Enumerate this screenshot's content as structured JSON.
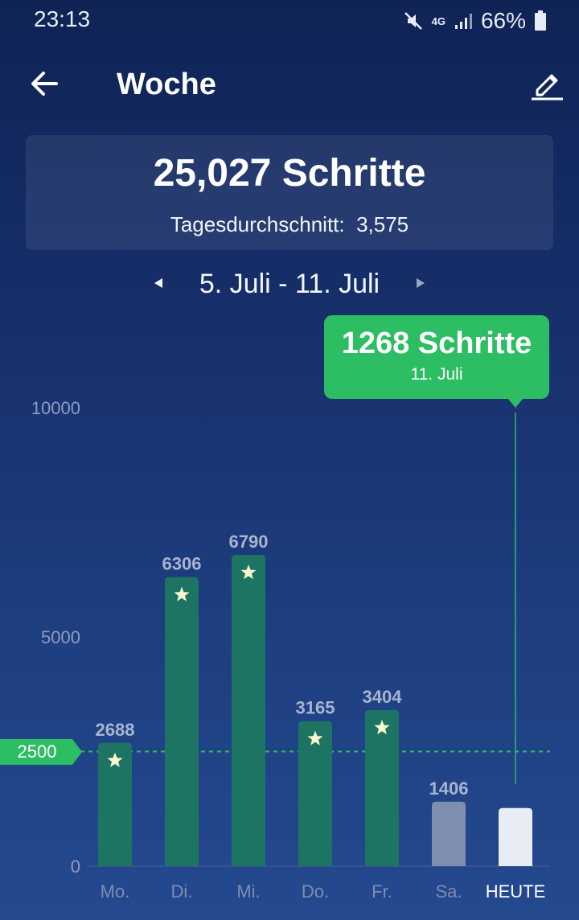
{
  "status_bar": {
    "time": "23:13",
    "network": "4G",
    "battery": "66%"
  },
  "header": {
    "title": "Woche"
  },
  "summary": {
    "total": "25,027 Schritte",
    "average_label": "Tagesdurchschnitt:",
    "average_value": "3,575"
  },
  "date_range": {
    "label": "5. Juli - 11. Juli"
  },
  "tooltip": {
    "steps": "1268 Schritte",
    "date": "11. Juli"
  },
  "goal": {
    "label": "2500",
    "value": 2500
  },
  "colors": {
    "bar_goal_met": "#1e7463",
    "bar_below_goal": "#7f8eae",
    "bar_today": "#e9ecf4",
    "goal_line": "#2dbd62",
    "star": "#fbf6cf"
  },
  "chart_data": {
    "type": "bar",
    "categories": [
      "Mo.",
      "Di.",
      "Mi.",
      "Do.",
      "Fr.",
      "Sa.",
      "HEUTE"
    ],
    "values": [
      2688,
      6306,
      6790,
      3165,
      3404,
      1406,
      1268
    ],
    "value_labels": [
      "2688",
      "6306",
      "6790",
      "3165",
      "3404",
      "1406",
      ""
    ],
    "highlighted_index": 6,
    "y_ticks": [
      {
        "value": 0,
        "label": "0"
      },
      {
        "value": 5000,
        "label": "5000"
      },
      {
        "value": 10000,
        "label": "10000"
      }
    ],
    "ylim": [
      0,
      10000
    ],
    "goal": 2500,
    "title": "",
    "xlabel": "",
    "ylabel": ""
  }
}
